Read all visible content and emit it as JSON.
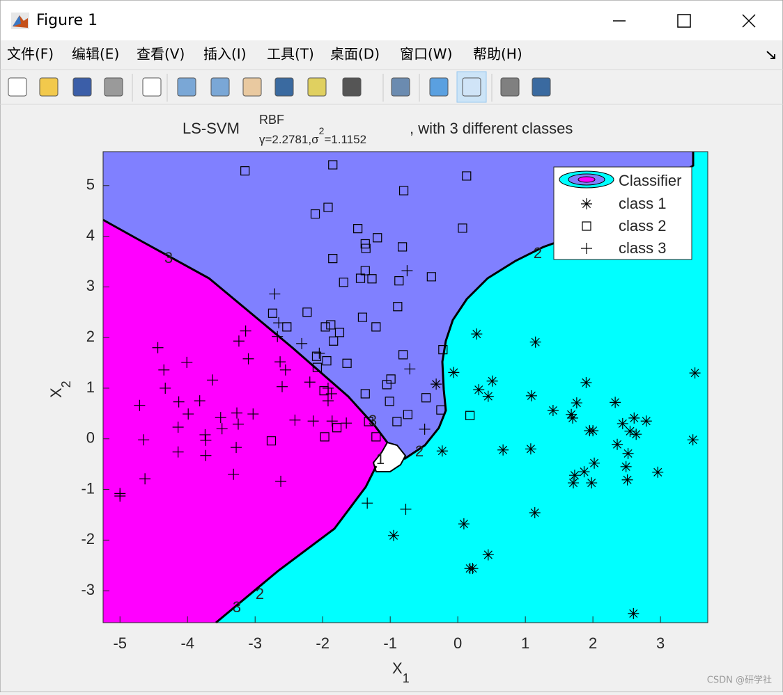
{
  "window": {
    "title": "Figure 1",
    "menu": [
      "文件(F)",
      "编辑(E)",
      "查看(V)",
      "插入(I)",
      "工具(T)",
      "桌面(D)",
      "窗口(W)",
      "帮助(H)"
    ]
  },
  "chart_data": {
    "type": "scatter",
    "title": "LS-SVM",
    "title_superscript": "RBF",
    "title_subscript": [
      "γ=2.2781,σ",
      "2",
      "=1.1152"
    ],
    "title_suffix": ", with 3 different classes",
    "xlabel": "X",
    "xlabel_subscript": "1",
    "ylabel": "X",
    "ylabel_subscript": "2",
    "xlim": [
      -5.25,
      3.7
    ],
    "ylim": [
      -3.63,
      5.67
    ],
    "xticks": [
      -5,
      -4,
      -3,
      -2,
      -1,
      0,
      1,
      2,
      3
    ],
    "yticks": [
      -3,
      -2,
      -1,
      0,
      1,
      2,
      3,
      4,
      5
    ],
    "legend": "northeast",
    "legend_classifier": "Classifier",
    "contour_labels": [
      "3",
      "2",
      "2",
      "1",
      "3",
      "2",
      "3"
    ],
    "series": [
      {
        "name": "class 1",
        "marker": "asterisk",
        "color": "#000000",
        "x": [
          0.28,
          1.15,
          3.51,
          -0.06,
          0.51,
          0.31,
          0.45,
          1.09,
          1.9,
          2.33,
          1.76,
          1.41,
          1.68,
          1.7,
          2.44,
          2.61,
          2.79,
          1.95,
          2.0,
          2.55,
          2.64,
          3.48,
          2.36,
          2.52,
          2.02,
          1.87,
          1.73,
          1.71,
          1.98,
          2.51,
          2.96,
          2.49,
          0.67,
          1.08,
          -0.23,
          1.14,
          0.09,
          0.45,
          0.18,
          0.22,
          2.6,
          -0.32,
          -0.95
        ],
        "values": [
          2.07,
          1.91,
          1.3,
          1.31,
          1.14,
          0.97,
          0.84,
          0.85,
          1.11,
          0.72,
          0.71,
          0.56,
          0.48,
          0.41,
          0.3,
          0.41,
          0.35,
          0.16,
          0.16,
          0.15,
          0.09,
          -0.02,
          -0.11,
          -0.29,
          -0.48,
          -0.65,
          -0.72,
          -0.87,
          -0.87,
          -0.81,
          -0.66,
          -0.55,
          -0.22,
          -0.2,
          -0.24,
          -1.46,
          -1.68,
          -2.29,
          -2.56,
          -2.56,
          -3.45,
          1.08,
          -1.91
        ]
      },
      {
        "name": "class 2",
        "marker": "square",
        "color": "#000000",
        "x": [
          -3.15,
          -1.85,
          0.13,
          -0.8,
          -1.92,
          -2.11,
          0.07,
          -1.48,
          -1.19,
          -1.37,
          -1.36,
          -0.82,
          -1.85,
          -1.37,
          -1.44,
          -1.27,
          -1.69,
          -0.87,
          -0.39,
          -2.74,
          -2.23,
          -0.89,
          -1.41,
          -2.53,
          -1.96,
          -1.88,
          -1.75,
          -1.21,
          -1.84,
          -0.22,
          -0.81,
          -2.09,
          -1.64,
          -1.94,
          -2.08,
          -0.99,
          -1.05,
          -1.98,
          -1.37,
          -1.01,
          -0.47,
          -0.25,
          -0.74,
          -0.9,
          -1.32,
          0.18,
          -1.79,
          -2.76,
          -1.97,
          -1.21
        ],
        "values": [
          5.29,
          5.41,
          5.19,
          4.9,
          4.57,
          4.44,
          4.16,
          4.15,
          3.97,
          3.85,
          3.76,
          3.79,
          3.56,
          3.32,
          3.17,
          3.16,
          3.09,
          3.12,
          3.2,
          2.48,
          2.5,
          2.61,
          2.4,
          2.21,
          2.21,
          2.25,
          2.1,
          2.21,
          1.93,
          1.76,
          1.66,
          1.63,
          1.49,
          1.54,
          1.41,
          1.18,
          1.07,
          0.95,
          0.89,
          0.74,
          0.81,
          0.57,
          0.48,
          0.34,
          0.34,
          0.46,
          0.22,
          -0.04,
          0.04,
          0.04
        ]
      },
      {
        "name": "class 3",
        "marker": "plus",
        "color": "#000000",
        "x": [
          -0.75,
          -2.71,
          -2.65,
          -3.14,
          -3.24,
          -2.31,
          -2.67,
          -4.44,
          -2.05,
          -4.01,
          -3.1,
          -2.63,
          -4.35,
          -2.55,
          -0.71,
          -3.63,
          -2.19,
          -4.33,
          -2.6,
          -1.92,
          -1.92,
          -1.87,
          -4.71,
          -4.13,
          -3.82,
          -3.27,
          -3.99,
          -3.03,
          -3.51,
          -3.25,
          -2.41,
          -2.14,
          -1.86,
          -4.14,
          -3.49,
          -1.65,
          -0.49,
          -3.74,
          -4.65,
          -3.73,
          -3.28,
          -4.14,
          -3.73,
          -3.32,
          -4.63,
          -2.62,
          -5.0,
          -5.0,
          -1.34,
          -0.77
        ],
        "values": [
          3.32,
          2.86,
          2.29,
          2.13,
          1.93,
          1.88,
          2.02,
          1.8,
          1.69,
          1.51,
          1.58,
          1.52,
          1.36,
          1.36,
          1.38,
          1.16,
          1.12,
          1.0,
          1.03,
          1.0,
          0.75,
          0.89,
          0.66,
          0.73,
          0.75,
          0.51,
          0.49,
          0.49,
          0.42,
          0.29,
          0.37,
          0.35,
          0.35,
          0.23,
          0.2,
          0.31,
          0.19,
          0.08,
          -0.02,
          -0.03,
          -0.17,
          -0.26,
          -0.33,
          -0.7,
          -0.79,
          -0.84,
          -1.08,
          -1.13,
          -1.27,
          -1.39
        ]
      }
    ]
  },
  "watermark": "CSDN @研学社"
}
